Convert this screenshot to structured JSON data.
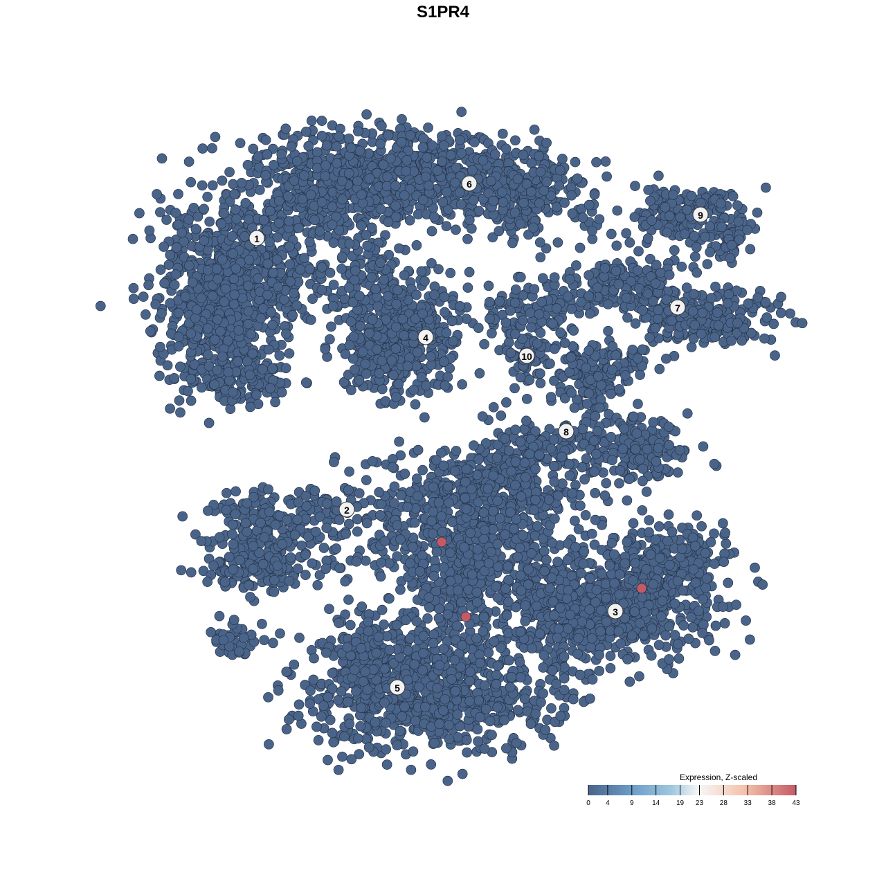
{
  "chart_data": {
    "type": "scatter",
    "title": "S1PR4",
    "xlabel": "",
    "ylabel": "",
    "grid": false,
    "axes_visible": false,
    "point_color_low": "#4a6489",
    "point_color_high": "#c45a64",
    "clusters": [
      "1",
      "2",
      "3",
      "4",
      "5",
      "6",
      "7",
      "8",
      "9",
      "10"
    ],
    "high_expression_points": 3,
    "colorbar": {
      "title": "Expression, Z-scaled",
      "ticks": [
        0,
        4,
        9,
        14,
        19,
        23,
        28,
        33,
        38,
        43
      ],
      "range": [
        0,
        43
      ],
      "colors": [
        "#4a6489",
        "#6a9ac6",
        "#9fc7df",
        "#f7f7f7",
        "#f4c3ac",
        "#c45a64"
      ],
      "placement": "bottom-right"
    }
  }
}
